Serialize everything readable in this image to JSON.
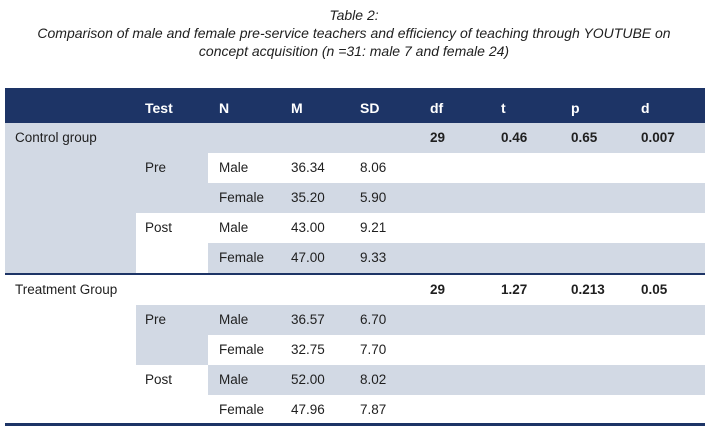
{
  "caption": {
    "title": "Table 2:",
    "line1": "Comparison of male and female pre-service teachers and efficiency of teaching through YOUTUBE on",
    "line2": "concept acquisition (n =31: male 7 and female 24)"
  },
  "headers": [
    "Test",
    "N",
    "M",
    "SD",
    "df",
    "t",
    "p",
    "d"
  ],
  "groups": [
    {
      "name": "Control group",
      "df": "29",
      "t": "0.46",
      "p": "0.65",
      "d": "0.007",
      "tests": [
        {
          "test": "Pre",
          "rows": [
            {
              "n": "Male",
              "m": "36.34",
              "sd": "8.06"
            },
            {
              "n": "Female",
              "m": "35.20",
              "sd": "5.90"
            }
          ]
        },
        {
          "test": "Post",
          "rows": [
            {
              "n": "Male",
              "m": "43.00",
              "sd": "9.21"
            },
            {
              "n": "Female",
              "m": "47.00",
              "sd": "9.33"
            }
          ]
        }
      ]
    },
    {
      "name": "Treatment Group",
      "df": "29",
      "t": "1.27",
      "p": "0.213",
      "d": "0.05",
      "tests": [
        {
          "test": "Pre",
          "rows": [
            {
              "n": "Male",
              "m": "36.57",
              "sd": "6.70"
            },
            {
              "n": "Female",
              "m": "32.75",
              "sd": "7.70"
            }
          ]
        },
        {
          "test": "Post",
          "rows": [
            {
              "n": "Male",
              "m": "52.00",
              "sd": "8.02"
            },
            {
              "n": "Female",
              "m": "47.96",
              "sd": "7.87"
            }
          ]
        }
      ]
    }
  ],
  "colors": {
    "header": "#1d3466",
    "band": "#d2d9e4",
    "text": "#1f1f1f"
  }
}
